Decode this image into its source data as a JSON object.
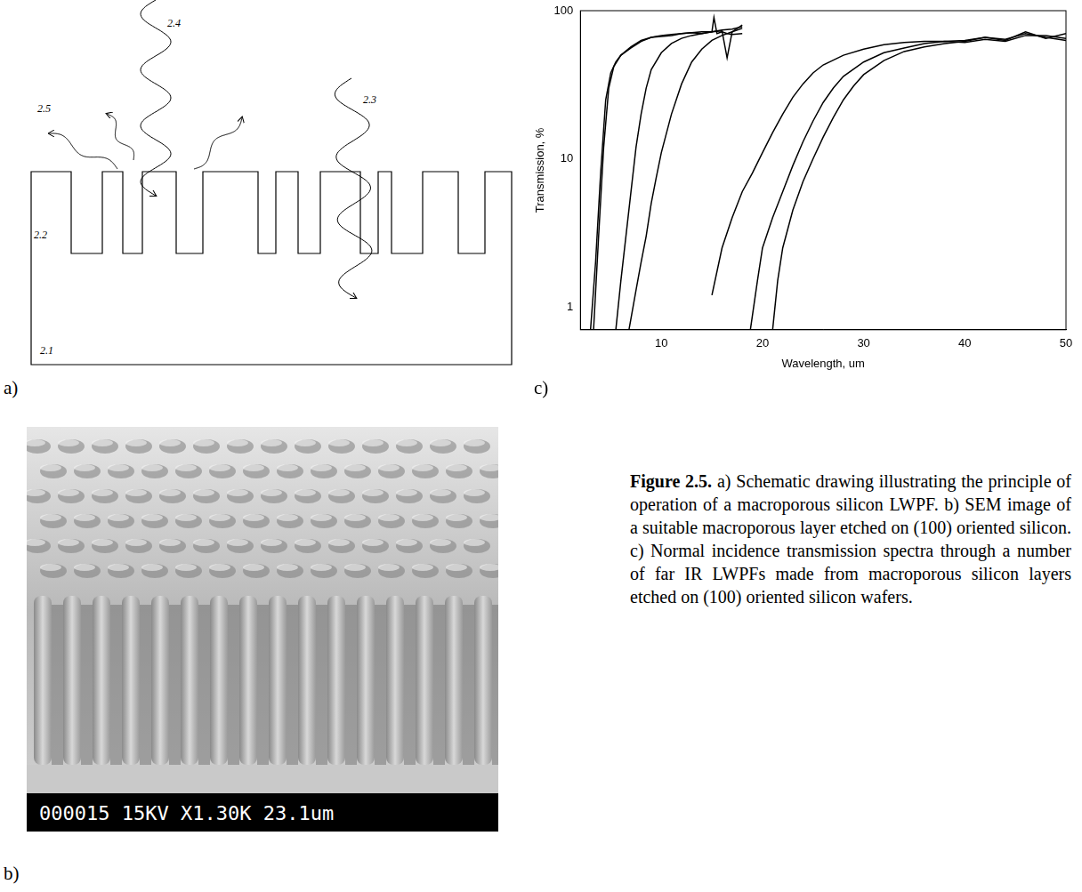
{
  "panel_labels": [
    "a)",
    "b)",
    "c)"
  ],
  "schematic": {
    "labels": {
      "substrate": "2.1",
      "porous_layer": "2.2",
      "transmitted": "2.3",
      "absorbed": "2.4",
      "scattered": "2.5"
    }
  },
  "sem_image": {
    "info_bar": "000015 15KV  X1.30K  23.1um"
  },
  "caption": {
    "label": "Figure 2.5.",
    "text": "a) Schematic drawing illustrating the principle of operation of a macroporous silicon LWPF. b) SEM image of a suitable macroporous layer etched on (100) oriented silicon. c) Normal incidence transmission spectra through a number of far IR LWPFs made from macroporous silicon layers etched on (100) oriented silicon wafers."
  },
  "chart_data": {
    "type": "line",
    "xlabel": "Wavelength, um",
    "ylabel": "Transmission, %",
    "xlim": [
      2,
      50
    ],
    "xticks": [
      10,
      20,
      30,
      40,
      50
    ],
    "ylim": [
      0.7,
      100
    ],
    "yticks": [
      1,
      10,
      100
    ],
    "log": "y",
    "grid": false,
    "series": [
      {
        "color": "#000000",
        "x": [
          3.0,
          3.5,
          4,
          4.5,
          5,
          5.5,
          6,
          7,
          8,
          9,
          10,
          11,
          12,
          13,
          14,
          15,
          15.2,
          15.5,
          16,
          16.5,
          17,
          18
        ],
        "values": [
          0.7,
          2,
          8,
          25,
          38,
          45,
          50,
          56,
          62,
          66,
          68,
          69,
          70,
          71,
          72,
          72,
          90,
          70,
          72,
          70,
          69,
          70
        ]
      },
      {
        "color": "#000000",
        "x": [
          3.3,
          3.8,
          4.3,
          4.8,
          5.3,
          6,
          7,
          8,
          9,
          10,
          11,
          12,
          13,
          14,
          15,
          16,
          16.5,
          17,
          18
        ],
        "values": [
          0.7,
          3,
          12,
          30,
          42,
          50,
          57,
          63,
          66,
          67,
          68,
          70,
          71,
          70,
          72,
          73,
          48,
          72,
          76
        ]
      },
      {
        "color": "#000000",
        "x": [
          5.5,
          6,
          6.5,
          7,
          7.5,
          8,
          8.5,
          9,
          10,
          11,
          12,
          13,
          14,
          15,
          16,
          17,
          18
        ],
        "values": [
          0.7,
          1.5,
          3,
          6,
          12,
          20,
          30,
          40,
          52,
          60,
          65,
          68,
          70,
          72,
          74,
          75,
          78
        ]
      },
      {
        "color": "#000000",
        "x": [
          6.8,
          7.5,
          8,
          8.5,
          9,
          9.5,
          10,
          11,
          12,
          13,
          14,
          15,
          16,
          17,
          18
        ],
        "values": [
          0.7,
          1.3,
          2,
          3,
          5,
          7.5,
          11,
          20,
          32,
          45,
          55,
          63,
          68,
          72,
          80
        ]
      },
      {
        "color": "#000000",
        "x": [
          15,
          16,
          17,
          18,
          19,
          20,
          21,
          22,
          23,
          24,
          25,
          26,
          28,
          30,
          32,
          34,
          36,
          38,
          40,
          42,
          44,
          46,
          48,
          50
        ],
        "values": [
          1.2,
          2.5,
          4,
          6,
          8,
          11,
          15,
          20,
          26,
          32,
          38,
          43,
          50,
          55,
          59,
          61,
          62,
          62,
          63,
          66,
          64,
          70,
          66,
          63
        ]
      },
      {
        "color": "#000000",
        "x": [
          18.8,
          19.5,
          20,
          21,
          22,
          23,
          24,
          25,
          26,
          27,
          28,
          30,
          32,
          34,
          36,
          38,
          40,
          42,
          44,
          46,
          48,
          50
        ],
        "values": [
          0.7,
          1.5,
          2.5,
          4,
          6,
          9,
          13,
          18,
          24,
          30,
          36,
          45,
          52,
          56,
          60,
          62,
          61,
          64,
          62,
          68,
          68,
          65
        ]
      },
      {
        "color": "#000000",
        "x": [
          21,
          21.5,
          22,
          23,
          24,
          25,
          26,
          27,
          28,
          29,
          30,
          32,
          34,
          36,
          38,
          40,
          42,
          44,
          46,
          48,
          50
        ],
        "values": [
          0.7,
          1.5,
          2.5,
          4.5,
          7,
          10,
          14,
          19,
          25,
          31,
          37,
          46,
          53,
          57,
          60,
          62,
          66,
          63,
          72,
          65,
          70
        ]
      }
    ]
  }
}
